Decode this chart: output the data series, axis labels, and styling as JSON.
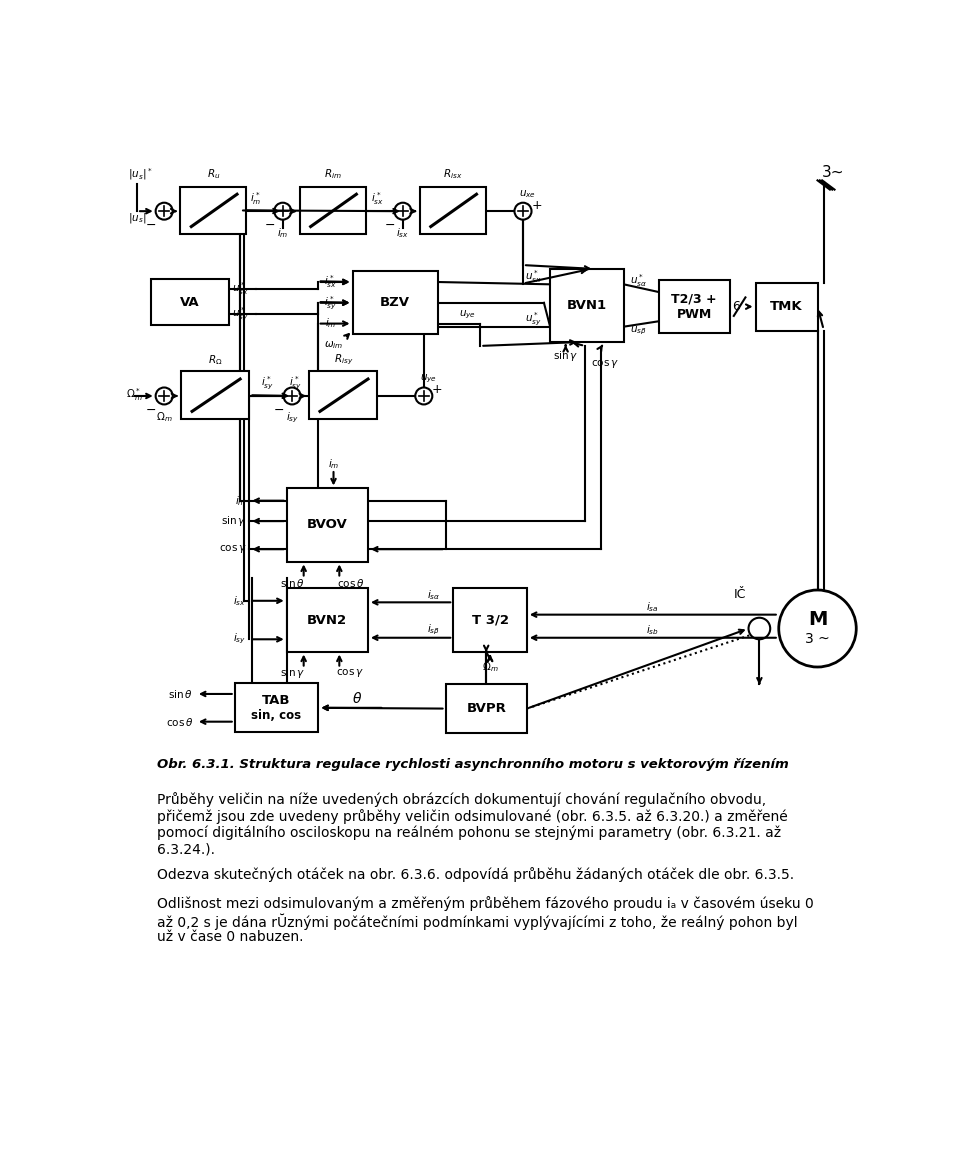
{
  "title": "Obr. 6.3.1. Struktura regulace rychlosti asynchronního motoru s vektorovým řízením",
  "paragraph1_line1": "Průběhy veličin na níže uvedených obrázcích dokumentují chování regulačního obvodu,",
  "paragraph1_line2": "přičemž jsou zde uvedeny průběhy veličin odsimulované (obr. 6.3.5. až 6.3.20.) a změřené",
  "paragraph1_line3": "pomocí digitálního osciloskopu na reálném pohonu se stejnými parametry (obr. 6.3.21. až",
  "paragraph1_line4": "6.3.24.).",
  "paragraph2": "Odezva skutečných otáček na obr. 6.3.6. odpovídá průběhu žádaných otáček dle obr. 6.3.5.",
  "paragraph3_line1": "Odlišnost mezi odsimulovaným a změřeným průběhem fázového proudu iₐ v časovém úseku 0",
  "paragraph3_line2": "až 0,2 s je dána rŬznými počátečními podmínkami vyplývajícími z toho, že reálný pohon byl",
  "paragraph3_line3": "už v čase 0 nabuzen.",
  "bg_color": "#ffffff",
  "text_color": "#000000"
}
